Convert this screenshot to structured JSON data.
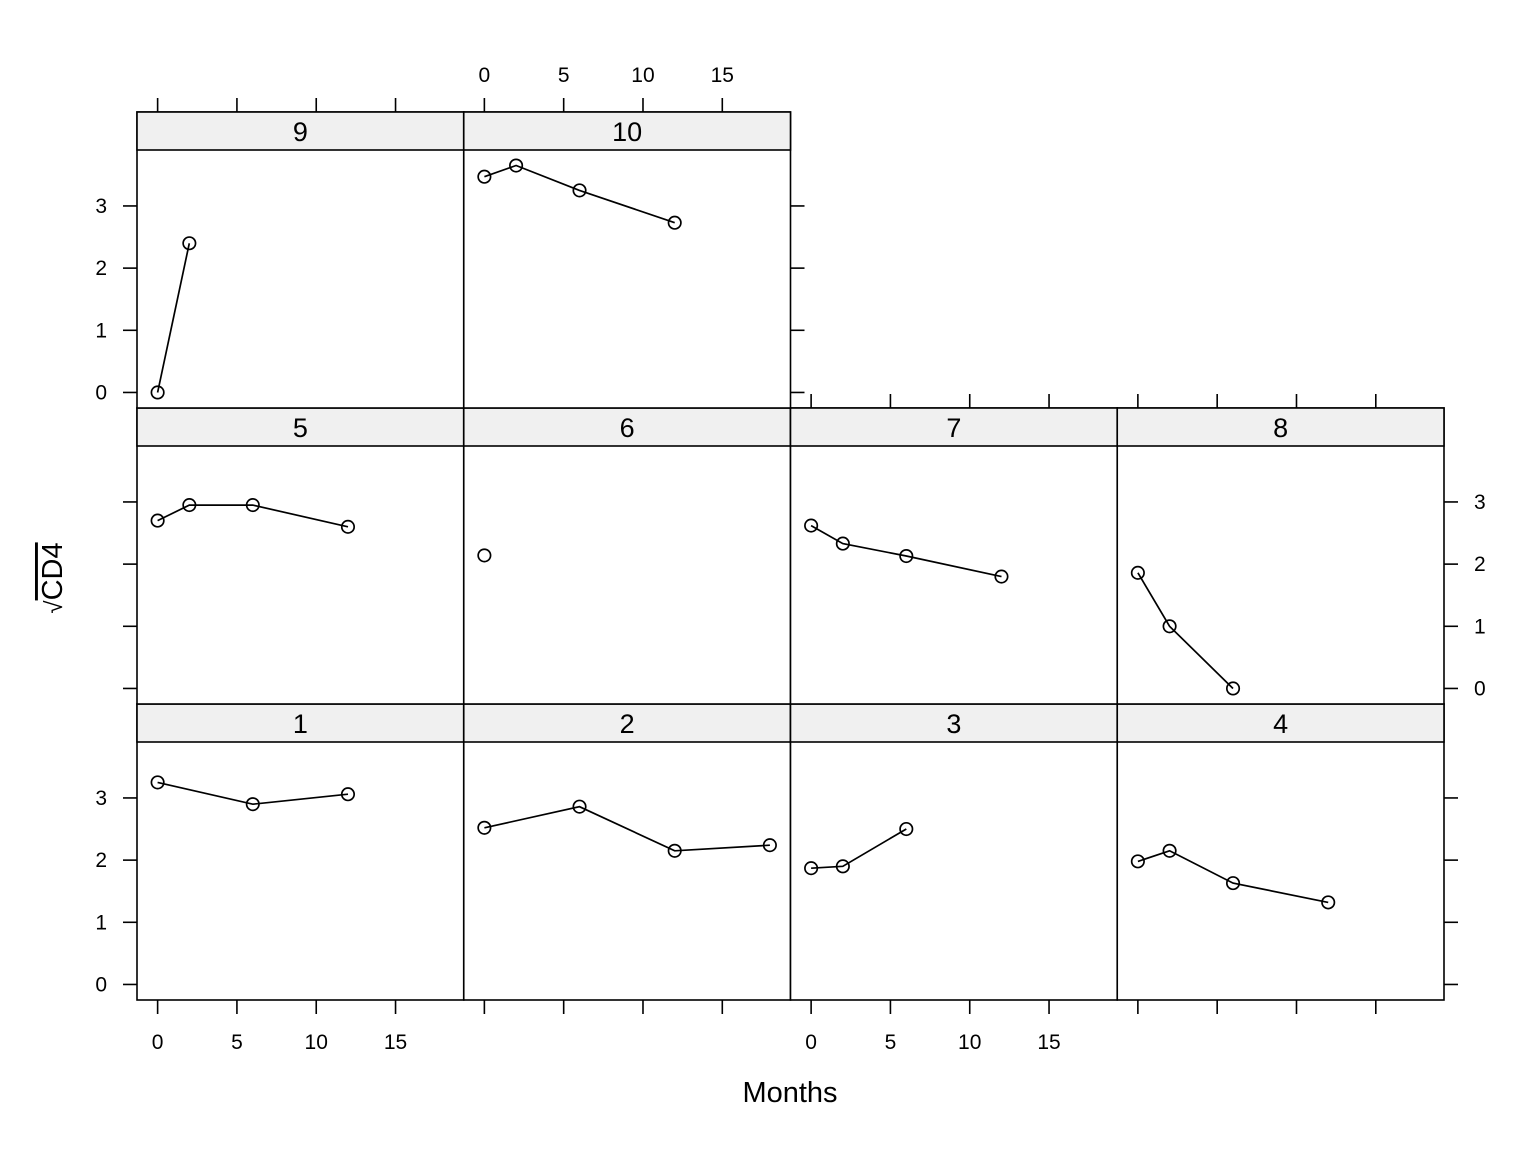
{
  "chart_data": {
    "type": "line",
    "layout": "trellis 4 columns x 3 rows",
    "xlabel": "Months",
    "ylabel": "CD4",
    "ylabel_prefix": "√",
    "xlim": [
      -1.3,
      19.3
    ],
    "ylim": [
      -0.25,
      3.9
    ],
    "x_ticks": [
      0,
      5,
      10,
      15
    ],
    "x_tick_labels": [
      "0",
      "5",
      "10",
      "15"
    ],
    "y_ticks": [
      0,
      1,
      2,
      3
    ],
    "y_tick_labels": [
      "0",
      "1",
      "2",
      "3"
    ],
    "grid": false,
    "legend": "none",
    "marker": "open circle",
    "line_color": "#000000",
    "strip_color": "#f0f0f0",
    "panels": [
      {
        "label": "1",
        "x": [
          0,
          6,
          12
        ],
        "y": [
          3.25,
          2.9,
          3.06
        ]
      },
      {
        "label": "2",
        "x": [
          0,
          6,
          12,
          18
        ],
        "y": [
          2.52,
          2.86,
          2.15,
          2.24
        ]
      },
      {
        "label": "3",
        "x": [
          0,
          2,
          6
        ],
        "y": [
          1.87,
          1.9,
          2.5
        ]
      },
      {
        "label": "4",
        "x": [
          0,
          2,
          6,
          12
        ],
        "y": [
          1.98,
          2.15,
          1.63,
          1.32
        ]
      },
      {
        "label": "5",
        "x": [
          0,
          2,
          6,
          12
        ],
        "y": [
          2.7,
          2.95,
          2.95,
          2.6
        ]
      },
      {
        "label": "6",
        "x": [
          0
        ],
        "y": [
          2.14
        ]
      },
      {
        "label": "7",
        "x": [
          0,
          2,
          6,
          12
        ],
        "y": [
          2.62,
          2.33,
          2.13,
          1.8
        ]
      },
      {
        "label": "8",
        "x": [
          0,
          2,
          6
        ],
        "y": [
          1.86,
          1.0,
          0.0
        ]
      },
      {
        "label": "9",
        "x": [
          0,
          2
        ],
        "y": [
          0.0,
          2.4
        ]
      },
      {
        "label": "10",
        "x": [
          0,
          2,
          6,
          12
        ],
        "y": [
          3.47,
          3.65,
          3.25,
          2.73
        ]
      }
    ]
  }
}
